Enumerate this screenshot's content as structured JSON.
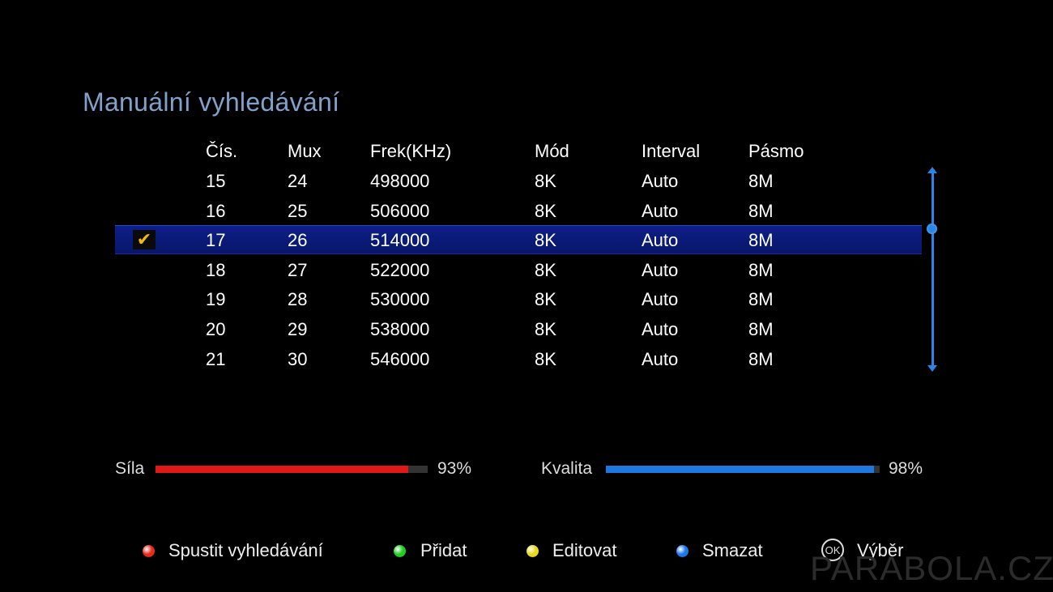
{
  "title": "Manuální vyhledávání",
  "columns": [
    "Čís.",
    "Mux",
    "Frek(KHz)",
    "Mód",
    "Interval",
    "Pásmo"
  ],
  "rows": [
    {
      "num": "15",
      "mux": "24",
      "freq": "498000",
      "mode": "8K",
      "interval": "Auto",
      "band": "8M",
      "selected": false
    },
    {
      "num": "16",
      "mux": "25",
      "freq": "506000",
      "mode": "8K",
      "interval": "Auto",
      "band": "8M",
      "selected": false
    },
    {
      "num": "17",
      "mux": "26",
      "freq": "514000",
      "mode": "8K",
      "interval": "Auto",
      "band": "8M",
      "selected": true
    },
    {
      "num": "18",
      "mux": "27",
      "freq": "522000",
      "mode": "8K",
      "interval": "Auto",
      "band": "8M",
      "selected": false
    },
    {
      "num": "19",
      "mux": "28",
      "freq": "530000",
      "mode": "8K",
      "interval": "Auto",
      "band": "8M",
      "selected": false
    },
    {
      "num": "20",
      "mux": "29",
      "freq": "538000",
      "mode": "8K",
      "interval": "Auto",
      "band": "8M",
      "selected": false
    },
    {
      "num": "21",
      "mux": "30",
      "freq": "546000",
      "mode": "8K",
      "interval": "Auto",
      "band": "8M",
      "selected": false
    }
  ],
  "check_icon": "check-icon",
  "signal": {
    "strength_label": "Síla",
    "strength_value": "93%",
    "strength_level": 0.93,
    "strength_color": "#e01818",
    "quality_label": "Kvalita",
    "quality_value": "98%",
    "quality_level": 0.98,
    "quality_color": "#1e78e0"
  },
  "legend": [
    {
      "label": "Spustit vyhledávání",
      "color": "#e82a1a"
    },
    {
      "label": "Přidat",
      "color": "#22cc22"
    },
    {
      "label": "Editovat",
      "color": "#e8d81a"
    },
    {
      "label": "Smazat",
      "color": "#1e78e8"
    }
  ],
  "ok_button": {
    "icon": "OK",
    "label": "Výběr"
  },
  "watermark": "PARABOLA.CZ"
}
